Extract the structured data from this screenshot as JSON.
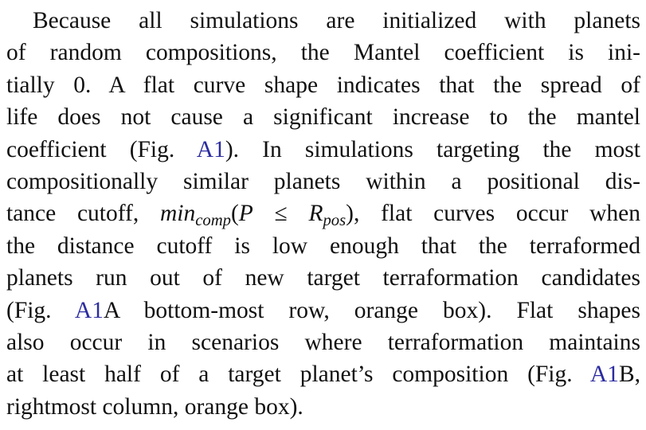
{
  "link_color": "#2c2ca0",
  "paragraph": [
    [
      {
        "t": "Because all simulations are initialized with planets"
      }
    ],
    [
      {
        "t": "of random compositions, the Mantel coefficient is ini-"
      }
    ],
    [
      {
        "t": "tially 0. A flat curve shape indicates that the spread of"
      }
    ],
    [
      {
        "t": "life does not cause a significant increase to the mantel"
      }
    ],
    [
      {
        "t": "coefficient (Fig. "
      },
      {
        "l": "A1"
      },
      {
        "t": "). In simulations targeting the most"
      }
    ],
    [
      {
        "t": "compositionally similar planets within a positional dis-"
      }
    ],
    [
      {
        "t": "tance cutoff, "
      },
      {
        "m": "min"
      },
      {
        "sub": "comp"
      },
      {
        "t": "("
      },
      {
        "m": "P"
      },
      {
        "t": " ≤ "
      },
      {
        "m": "R"
      },
      {
        "sub": "pos"
      },
      {
        "t": "), flat curves occur when"
      }
    ],
    [
      {
        "t": "the distance cutoff is low enough that the terraformed"
      }
    ],
    [
      {
        "t": "planets run out of new target terraformation candidates"
      }
    ],
    [
      {
        "t": "(Fig. "
      },
      {
        "l": "A1"
      },
      {
        "t": "A bottom-most row, orange box). Flat shapes"
      }
    ],
    [
      {
        "t": "also occur in scenarios where terraformation maintains"
      }
    ],
    [
      {
        "t": "at least half of a target planet’s composition (Fig. "
      },
      {
        "l": "A1"
      },
      {
        "t": "B,"
      }
    ],
    [
      {
        "t": "rightmost column, orange box)."
      }
    ]
  ]
}
